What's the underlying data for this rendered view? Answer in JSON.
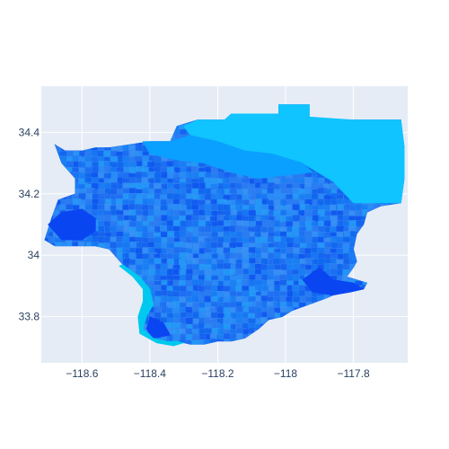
{
  "chart_data": {
    "type": "choropleth-map",
    "title": "",
    "xlabel": "",
    "ylabel": "",
    "xlim": [
      -118.72,
      -117.64
    ],
    "ylim": [
      33.65,
      34.55
    ],
    "grid": true,
    "x_ticks": [
      -118.6,
      -118.4,
      -118.2,
      -118,
      -117.8
    ],
    "x_tick_labels": [
      "−118.6",
      "−118.4",
      "−118.2",
      "−118",
      "−117.8"
    ],
    "y_ticks": [
      33.8,
      34,
      34.2,
      34.4
    ],
    "y_tick_labels": [
      "33.8",
      "34",
      "34.2",
      "34.4"
    ],
    "region_outline": [
      [
        -118.68,
        34.36
      ],
      [
        -118.65,
        34.34
      ],
      [
        -118.6,
        34.34
      ],
      [
        -118.56,
        34.35
      ],
      [
        -118.52,
        34.35
      ],
      [
        -118.46,
        34.36
      ],
      [
        -118.4,
        34.37
      ],
      [
        -118.34,
        34.37
      ],
      [
        -118.32,
        34.42
      ],
      [
        -118.26,
        34.44
      ],
      [
        -118.18,
        34.44
      ],
      [
        -118.16,
        34.46
      ],
      [
        -118.02,
        34.46
      ],
      [
        -118.02,
        34.49
      ],
      [
        -117.93,
        34.49
      ],
      [
        -117.93,
        34.45
      ],
      [
        -117.87,
        34.44
      ],
      [
        -117.8,
        34.44
      ],
      [
        -117.66,
        34.44
      ],
      [
        -117.65,
        34.35
      ],
      [
        -117.65,
        34.25
      ],
      [
        -117.66,
        34.17
      ],
      [
        -117.72,
        34.16
      ],
      [
        -117.76,
        34.14
      ],
      [
        -117.77,
        34.1
      ],
      [
        -117.79,
        34.07
      ],
      [
        -117.8,
        34.02
      ],
      [
        -117.79,
        33.98
      ],
      [
        -117.8,
        33.96
      ],
      [
        -117.82,
        33.93
      ],
      [
        -117.76,
        33.91
      ],
      [
        -117.77,
        33.89
      ],
      [
        -117.81,
        33.88
      ],
      [
        -117.84,
        33.88
      ],
      [
        -117.88,
        33.86
      ],
      [
        -117.93,
        33.84
      ],
      [
        -117.98,
        33.82
      ],
      [
        -118.01,
        33.8
      ],
      [
        -118.05,
        33.79
      ],
      [
        -118.08,
        33.76
      ],
      [
        -118.12,
        33.73
      ],
      [
        -118.16,
        33.72
      ],
      [
        -118.2,
        33.72
      ],
      [
        -118.24,
        33.71
      ],
      [
        -118.28,
        33.71
      ],
      [
        -118.32,
        33.72
      ],
      [
        -118.35,
        33.72
      ],
      [
        -118.39,
        33.73
      ],
      [
        -118.42,
        33.76
      ],
      [
        -118.41,
        33.8
      ],
      [
        -118.39,
        33.84
      ],
      [
        -118.4,
        33.89
      ],
      [
        -118.43,
        33.93
      ],
      [
        -118.48,
        33.97
      ],
      [
        -118.52,
        34.02
      ],
      [
        -118.56,
        34.03
      ],
      [
        -118.62,
        34.03
      ],
      [
        -118.68,
        34.03
      ],
      [
        -118.71,
        34.05
      ],
      [
        -118.69,
        34.12
      ],
      [
        -118.67,
        34.18
      ],
      [
        -118.62,
        34.2
      ],
      [
        -118.62,
        34.25
      ],
      [
        -118.66,
        34.3
      ],
      [
        -118.68,
        34.36
      ]
    ],
    "colors": {
      "plot_bg": "#e5ecf6",
      "grid": "#ffffff",
      "tick_text": "#2a3f5f",
      "base_fill": "#1a73f0",
      "light_region": "#0fc4ff",
      "mid_region": "#0aa0ff",
      "dark_region": "#0a45f2",
      "coast_fringe": "#00c8ef"
    },
    "regions": [
      {
        "name": "northeast-light-region",
        "fill_key": "light_region",
        "points": [
          [
            -118.3,
            34.42
          ],
          [
            -118.26,
            34.44
          ],
          [
            -118.18,
            34.44
          ],
          [
            -118.16,
            34.46
          ],
          [
            -118.02,
            34.46
          ],
          [
            -118.02,
            34.49
          ],
          [
            -117.93,
            34.49
          ],
          [
            -117.93,
            34.45
          ],
          [
            -117.8,
            34.44
          ],
          [
            -117.66,
            34.44
          ],
          [
            -117.65,
            34.35
          ],
          [
            -117.65,
            34.25
          ],
          [
            -117.66,
            34.17
          ],
          [
            -117.73,
            34.17
          ],
          [
            -117.8,
            34.17
          ],
          [
            -117.86,
            34.24
          ],
          [
            -117.95,
            34.3
          ],
          [
            -118.04,
            34.33
          ],
          [
            -118.12,
            34.34
          ],
          [
            -118.2,
            34.37
          ],
          [
            -118.28,
            34.39
          ],
          [
            -118.3,
            34.42
          ]
        ]
      },
      {
        "name": "north-mid-region",
        "fill_key": "mid_region",
        "points": [
          [
            -118.42,
            34.37
          ],
          [
            -118.34,
            34.37
          ],
          [
            -118.28,
            34.39
          ],
          [
            -118.2,
            34.37
          ],
          [
            -118.12,
            34.34
          ],
          [
            -118.04,
            34.33
          ],
          [
            -117.95,
            34.3
          ],
          [
            -117.92,
            34.27
          ],
          [
            -118.0,
            34.26
          ],
          [
            -118.08,
            34.25
          ],
          [
            -118.16,
            34.27
          ],
          [
            -118.24,
            34.3
          ],
          [
            -118.32,
            34.31
          ],
          [
            -118.4,
            34.33
          ],
          [
            -118.42,
            34.37
          ]
        ]
      },
      {
        "name": "west-valley-dark-region",
        "fill_key": "dark_region",
        "points": [
          [
            -118.7,
            34.1
          ],
          [
            -118.66,
            34.14
          ],
          [
            -118.6,
            34.15
          ],
          [
            -118.56,
            34.12
          ],
          [
            -118.56,
            34.08
          ],
          [
            -118.6,
            34.05
          ],
          [
            -118.66,
            34.05
          ],
          [
            -118.7,
            34.1
          ]
        ]
      },
      {
        "name": "pomona-dark-region",
        "fill_key": "dark_region",
        "points": [
          [
            -117.9,
            33.96
          ],
          [
            -117.86,
            33.92
          ],
          [
            -117.8,
            33.91
          ],
          [
            -117.77,
            33.89
          ],
          [
            -117.81,
            33.88
          ],
          [
            -117.86,
            33.87
          ],
          [
            -117.92,
            33.88
          ],
          [
            -117.95,
            33.92
          ],
          [
            -117.9,
            33.96
          ]
        ]
      },
      {
        "name": "south-bay-dark-region",
        "fill_key": "dark_region",
        "points": [
          [
            -118.4,
            33.8
          ],
          [
            -118.36,
            33.78
          ],
          [
            -118.34,
            33.74
          ],
          [
            -118.39,
            33.73
          ],
          [
            -118.41,
            33.76
          ],
          [
            -118.4,
            33.8
          ]
        ]
      },
      {
        "name": "coastal-fringe-region",
        "fill_key": "coast_fringe",
        "points": [
          [
            -118.48,
            33.97
          ],
          [
            -118.43,
            33.93
          ],
          [
            -118.4,
            33.89
          ],
          [
            -118.39,
            33.84
          ],
          [
            -118.41,
            33.8
          ],
          [
            -118.42,
            33.76
          ],
          [
            -118.39,
            33.73
          ],
          [
            -118.35,
            33.72
          ],
          [
            -118.32,
            33.72
          ],
          [
            -118.3,
            33.715
          ],
          [
            -118.33,
            33.705
          ],
          [
            -118.38,
            33.715
          ],
          [
            -118.43,
            33.745
          ],
          [
            -118.435,
            33.8
          ],
          [
            -118.42,
            33.85
          ],
          [
            -118.42,
            33.89
          ],
          [
            -118.45,
            33.93
          ],
          [
            -118.49,
            33.965
          ],
          [
            -118.48,
            33.97
          ]
        ]
      }
    ]
  }
}
